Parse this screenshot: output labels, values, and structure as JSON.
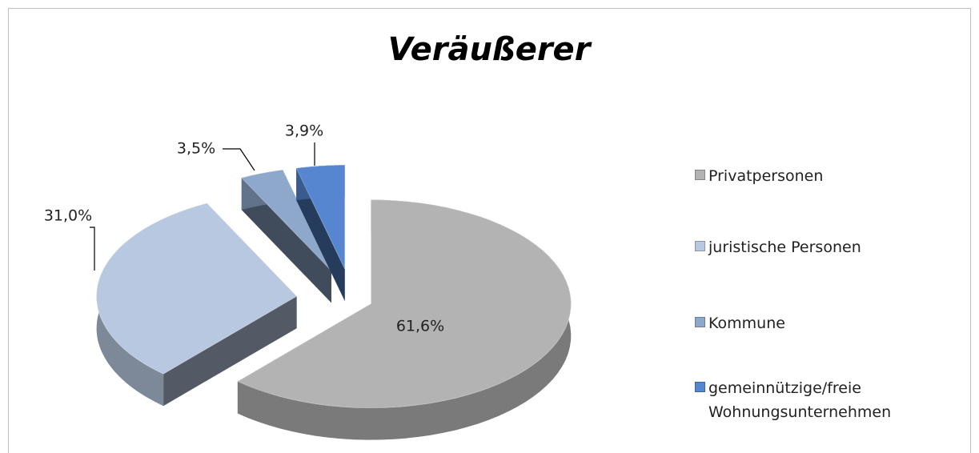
{
  "chart_data": {
    "type": "pie",
    "title": "Veräußerer",
    "categories": [
      "Privatpersonen",
      "juristische Personen",
      "Kommune",
      "gemeinnützige/freie Wohnungsunternehmen"
    ],
    "values": [
      61.6,
      31.0,
      3.5,
      3.9
    ],
    "value_labels": [
      "61,6%",
      "31,0%",
      "3,5%",
      "3,9%"
    ],
    "colors": [
      "#b3b3b3",
      "#b8c8e0",
      "#8ea8cc",
      "#5586cf"
    ]
  }
}
